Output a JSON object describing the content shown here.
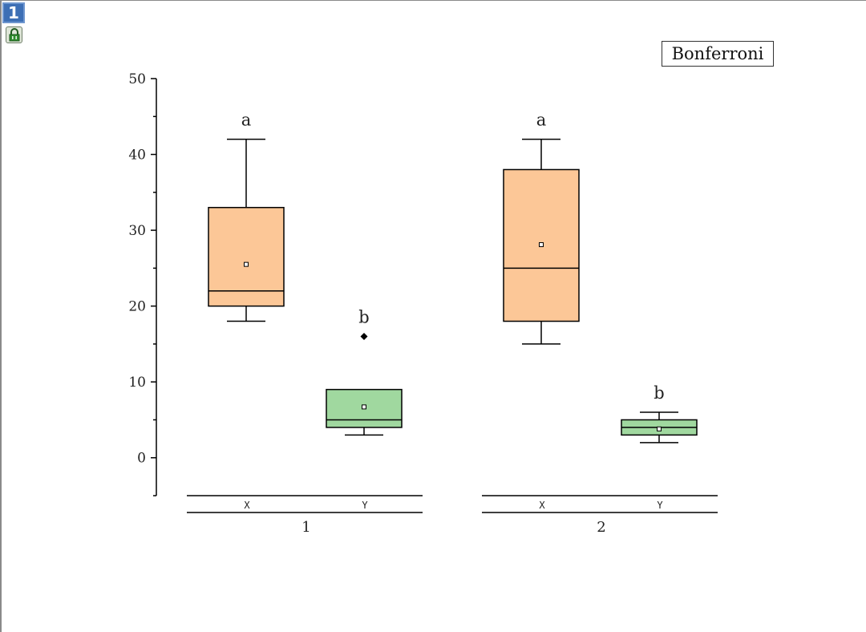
{
  "page": {
    "number_label": "1"
  },
  "icons": {
    "badge": "page-number-badge",
    "lock": "lock-icon"
  },
  "legend": {
    "text": "Bonferroni"
  },
  "colors": {
    "x_box": "#fcc797",
    "y_box": "#a0d89f",
    "line": "#000000"
  },
  "chart_data": {
    "type": "box",
    "ylim": [
      -5,
      50
    ],
    "yticks": [
      "0",
      "10",
      "20",
      "30",
      "40",
      "50"
    ],
    "ytick_values": [
      0,
      10,
      20,
      30,
      40,
      50
    ],
    "grid": false,
    "groups": [
      {
        "label": "1",
        "boxes": [
          {
            "label": "X",
            "whisker_low": 18,
            "q1": 20,
            "median": 22,
            "q3": 33,
            "whisker_high": 42,
            "mean": 25.5,
            "outliers": [],
            "letter": "a"
          },
          {
            "label": "Y",
            "whisker_low": 3,
            "q1": 4,
            "median": 5,
            "q3": 9,
            "whisker_high": 9,
            "mean": 6.7,
            "outliers": [
              16
            ],
            "letter": "b"
          }
        ]
      },
      {
        "label": "2",
        "boxes": [
          {
            "label": "X",
            "whisker_low": 15,
            "q1": 18,
            "median": 25,
            "q3": 38,
            "whisker_high": 42,
            "mean": 28.1,
            "outliers": [],
            "letter": "a"
          },
          {
            "label": "Y",
            "whisker_low": 2,
            "q1": 3,
            "median": 4,
            "q3": 5,
            "whisker_high": 6,
            "mean": 3.8,
            "outliers": [],
            "letter": "b"
          }
        ]
      }
    ]
  }
}
